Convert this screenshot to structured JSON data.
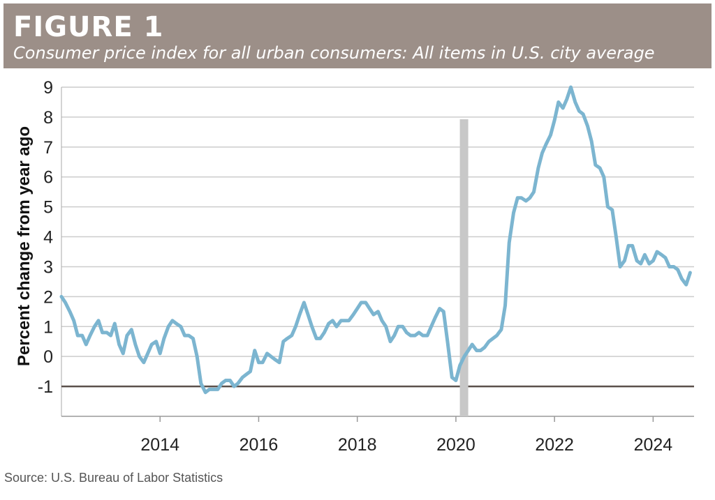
{
  "figure": {
    "label": "FIGURE 1",
    "subtitle": "Consumer price index for all urban consumers: All items in U.S. city average"
  },
  "source": "Source: U.S. Bureau of Labor Statistics",
  "colors": {
    "banner": "#9c8f88",
    "line": "#7cb5d0",
    "recession": "#c8c8c8",
    "zero_line": "#5a4f4a",
    "grid": "#cccccc",
    "text": "#222222"
  },
  "chart_data": {
    "type": "line",
    "title": "Consumer price index for all urban consumers: All items in U.S. city average",
    "xlabel": "",
    "ylabel": "Percent change from year ago",
    "xlim": [
      2012.0,
      2024.83
    ],
    "ylim": [
      -2,
      9
    ],
    "grid": true,
    "y_ticks": [
      -1,
      0,
      1,
      2,
      3,
      4,
      5,
      6,
      7,
      8,
      9
    ],
    "y_tick_labels": [
      "-1",
      "0",
      "1",
      "2",
      "3",
      "4",
      "5",
      "6",
      "7",
      "8",
      "9"
    ],
    "x_ticks": [
      2014,
      2016,
      2018,
      2020,
      2022,
      2024
    ],
    "x_tick_labels": [
      "2014",
      "2016",
      "2018",
      "2020",
      "2022",
      "2024"
    ],
    "reference_line": -1,
    "recession_shading": [
      {
        "start": 2020.08,
        "end": 2020.25
      }
    ],
    "series": [
      {
        "name": "CPI percent change from year ago",
        "x": [
          2012.0,
          2012.08,
          2012.17,
          2012.25,
          2012.33,
          2012.42,
          2012.5,
          2012.58,
          2012.67,
          2012.75,
          2012.83,
          2012.92,
          2013.0,
          2013.08,
          2013.17,
          2013.25,
          2013.33,
          2013.42,
          2013.5,
          2013.58,
          2013.67,
          2013.75,
          2013.83,
          2013.92,
          2014.0,
          2014.08,
          2014.17,
          2014.25,
          2014.33,
          2014.42,
          2014.5,
          2014.58,
          2014.67,
          2014.75,
          2014.83,
          2014.92,
          2015.0,
          2015.08,
          2015.17,
          2015.25,
          2015.33,
          2015.42,
          2015.5,
          2015.58,
          2015.67,
          2015.75,
          2015.83,
          2015.92,
          2016.0,
          2016.08,
          2016.17,
          2016.25,
          2016.33,
          2016.42,
          2016.5,
          2016.58,
          2016.67,
          2016.75,
          2016.83,
          2016.92,
          2017.0,
          2017.08,
          2017.17,
          2017.25,
          2017.33,
          2017.42,
          2017.5,
          2017.58,
          2017.67,
          2017.75,
          2017.83,
          2017.92,
          2018.0,
          2018.08,
          2018.17,
          2018.25,
          2018.33,
          2018.42,
          2018.5,
          2018.58,
          2018.67,
          2018.75,
          2018.83,
          2018.92,
          2019.0,
          2019.08,
          2019.17,
          2019.25,
          2019.33,
          2019.42,
          2019.5,
          2019.58,
          2019.67,
          2019.75,
          2019.83,
          2019.92,
          2020.0,
          2020.08,
          2020.17,
          2020.25,
          2020.33,
          2020.42,
          2020.5,
          2020.58,
          2020.67,
          2020.75,
          2020.83,
          2020.92,
          2021.0,
          2021.08,
          2021.17,
          2021.25,
          2021.33,
          2021.42,
          2021.5,
          2021.58,
          2021.67,
          2021.75,
          2021.83,
          2021.92,
          2022.0,
          2022.08,
          2022.17,
          2022.25,
          2022.33,
          2022.42,
          2022.5,
          2022.58,
          2022.67,
          2022.75,
          2022.83,
          2022.92,
          2023.0,
          2023.08,
          2023.17,
          2023.25,
          2023.33,
          2023.42,
          2023.5,
          2023.58,
          2023.67,
          2023.75,
          2023.83,
          2023.92,
          2024.0,
          2024.08,
          2024.17,
          2024.25,
          2024.33,
          2024.42,
          2024.5,
          2024.58,
          2024.67,
          2024.75
        ],
        "values": [
          2.0,
          1.8,
          1.5,
          1.2,
          0.7,
          0.7,
          0.4,
          0.7,
          1.0,
          1.2,
          0.8,
          0.8,
          0.7,
          1.1,
          0.4,
          0.1,
          0.7,
          0.9,
          0.4,
          0.0,
          -0.2,
          0.1,
          0.4,
          0.5,
          0.1,
          0.6,
          1.0,
          1.2,
          1.1,
          1.0,
          0.7,
          0.7,
          0.6,
          0.0,
          -0.9,
          -1.2,
          -1.1,
          -1.1,
          -1.1,
          -0.9,
          -0.8,
          -0.8,
          -1.0,
          -0.9,
          -0.7,
          -0.6,
          -0.5,
          0.2,
          -0.2,
          -0.2,
          0.1,
          0.0,
          -0.1,
          -0.2,
          0.5,
          0.6,
          0.7,
          1.0,
          1.4,
          1.8,
          1.4,
          1.0,
          0.6,
          0.6,
          0.8,
          1.1,
          1.2,
          1.0,
          1.2,
          1.2,
          1.2,
          1.4,
          1.6,
          1.8,
          1.8,
          1.6,
          1.4,
          1.5,
          1.2,
          1.0,
          0.5,
          0.7,
          1.0,
          1.0,
          0.8,
          0.7,
          0.7,
          0.8,
          0.7,
          0.7,
          1.0,
          1.3,
          1.6,
          1.5,
          0.5,
          -0.7,
          -0.8,
          -0.3,
          0.0,
          0.2,
          0.4,
          0.2,
          0.2,
          0.3,
          0.5,
          0.6,
          0.7,
          0.9,
          1.7,
          3.8,
          4.8,
          5.3,
          5.3,
          5.2,
          5.3,
          5.5,
          6.3,
          6.8,
          7.1,
          7.4,
          7.9,
          8.5,
          8.3,
          8.6,
          9.0,
          8.5,
          8.2,
          8.1,
          7.7,
          7.2,
          6.4,
          6.3,
          6.0,
          5.0,
          4.9,
          4.0,
          3.0,
          3.2,
          3.7,
          3.7,
          3.2,
          3.1,
          3.4,
          3.1,
          3.2,
          3.5,
          3.4,
          3.3,
          3.0,
          3.0,
          2.9,
          2.6,
          2.4,
          2.8
        ]
      }
    ]
  }
}
